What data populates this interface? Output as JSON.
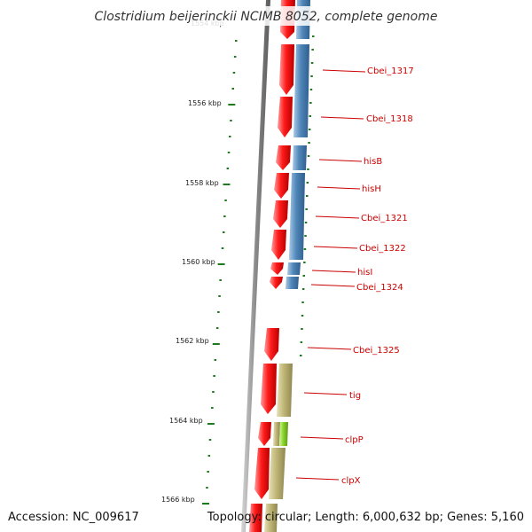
{
  "title": "Clostridium beijerinckii NCIMB 8052, complete genome",
  "footer": {
    "accession": "Accession: NC_009617",
    "topology": "Topology: circular; Length: 6,000,632 bp; Genes: 5,160"
  },
  "kbp_labels": [
    "1554 kbp",
    "1556 kbp",
    "1558 kbp",
    "1560 kbp",
    "1562 kbp",
    "1564 kbp",
    "1566 kbp"
  ],
  "genes": [
    {
      "name": "Cbei_1317",
      "strand": "reverse",
      "cog": "blue"
    },
    {
      "name": "Cbei_1318",
      "strand": "reverse",
      "cog": "blue"
    },
    {
      "name": "hisB",
      "strand": "reverse",
      "cog": "blue"
    },
    {
      "name": "hisH",
      "strand": "reverse",
      "cog": "blue"
    },
    {
      "name": "Cbei_1321",
      "strand": "reverse",
      "cog": "blue"
    },
    {
      "name": "Cbei_1322",
      "strand": "reverse",
      "cog": "blue"
    },
    {
      "name": "hisI",
      "strand": "reverse",
      "cog": "blue"
    },
    {
      "name": "Cbei_1324",
      "strand": "reverse",
      "cog": "blue"
    },
    {
      "name": "Cbei_1325",
      "strand": "reverse",
      "cog": "none"
    },
    {
      "name": "tig",
      "strand": "reverse",
      "cog": "olive"
    },
    {
      "name": "clpP",
      "strand": "reverse",
      "cog": "green"
    },
    {
      "name": "clpX",
      "strand": "reverse",
      "cog": "olive"
    }
  ],
  "colors": {
    "gene": "#ee0000",
    "gene_light": "#ff8080",
    "blue": "#4f86b8",
    "blue_light": "#9cc0e0",
    "olive": "#bfb676",
    "olive_light": "#e2dcb0",
    "green": "#88d42a",
    "green_light": "#c8f28a",
    "tick": "#1f7a1f",
    "label_line": "#cc0000",
    "backbone": "#8a8a8a"
  }
}
